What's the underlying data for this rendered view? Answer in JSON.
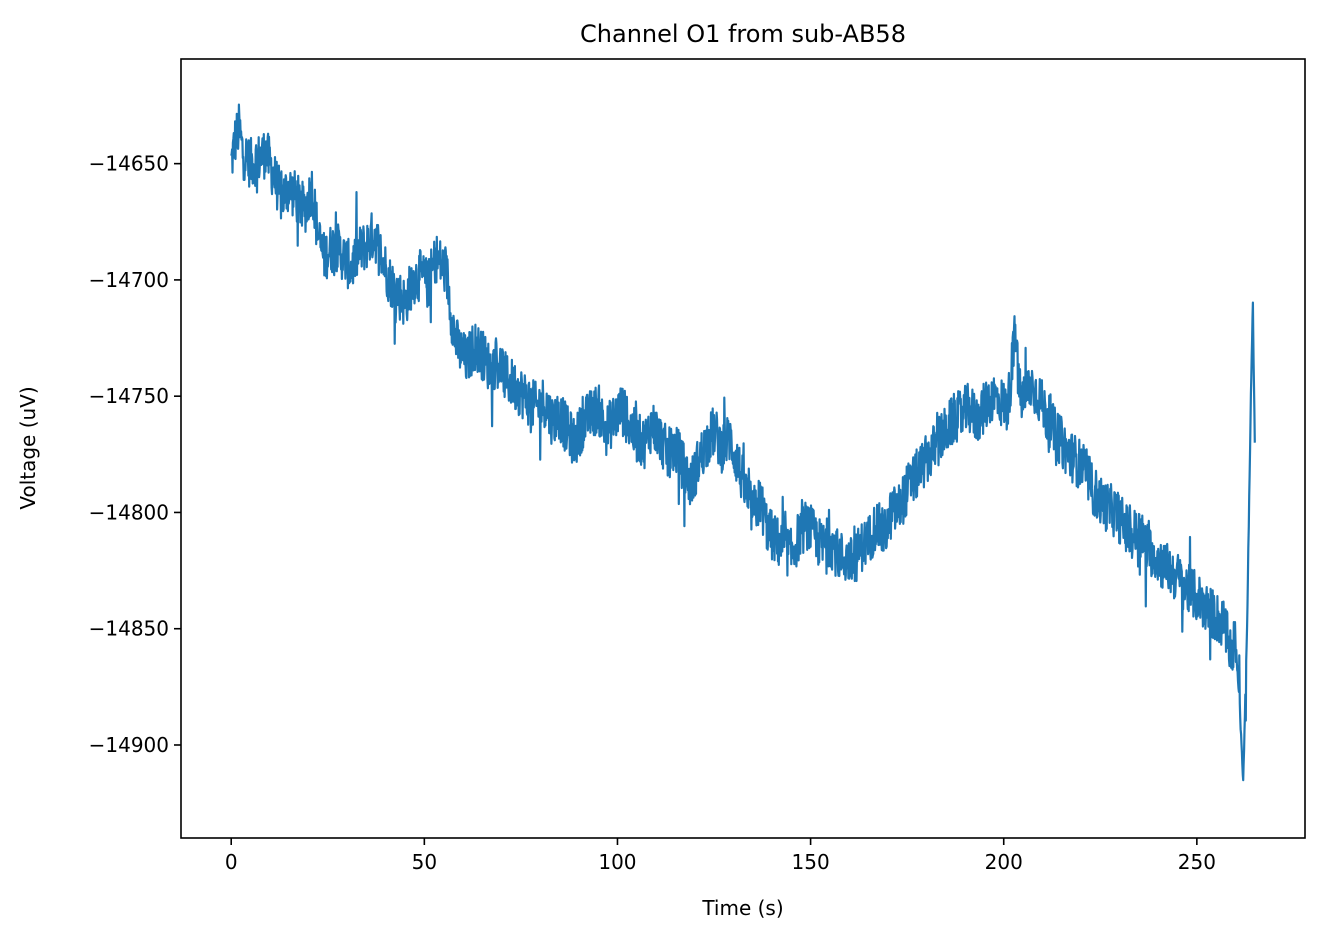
{
  "chart_data": {
    "type": "line",
    "title": "Channel O1 from sub-AB58",
    "xlabel": "Time (s)",
    "ylabel": "Voltage (uV)",
    "xlim": [
      -13,
      278
    ],
    "ylim": [
      -14940,
      -14605
    ],
    "xticks": [
      0,
      50,
      100,
      150,
      200,
      250
    ],
    "xtick_labels": [
      "0",
      "50",
      "100",
      "150",
      "200",
      "250"
    ],
    "yticks": [
      -14650,
      -14700,
      -14750,
      -14800,
      -14850,
      -14900
    ],
    "ytick_labels": [
      "−14650",
      "−14700",
      "−14750",
      "−14800",
      "−14850",
      "−14900"
    ],
    "grid": false,
    "series": [
      {
        "color": "#1f77b4",
        "x": [
          0,
          1,
          2,
          3,
          5,
          7,
          9,
          11,
          13,
          15,
          17,
          19,
          21,
          22,
          23,
          24,
          25,
          27,
          29,
          31,
          33,
          35,
          37,
          39,
          40,
          41,
          43,
          45,
          47,
          49,
          51,
          53,
          55,
          56,
          57,
          58,
          59,
          61,
          63,
          65,
          67,
          69,
          71,
          73,
          75,
          77,
          79,
          81,
          83,
          85,
          87,
          89,
          91,
          93,
          95,
          97,
          99,
          101,
          103,
          105,
          107,
          109,
          111,
          113,
          115,
          117,
          119,
          121,
          123,
          125,
          127,
          129,
          131,
          133,
          135,
          137,
          139,
          141,
          143,
          145,
          147,
          149,
          151,
          153,
          155,
          157,
          159,
          161,
          163,
          165,
          167,
          169,
          171,
          173,
          175,
          177,
          179,
          181,
          183,
          185,
          187,
          189,
          191,
          193,
          195,
          197,
          199,
          201,
          202,
          203,
          204,
          205,
          207,
          209,
          211,
          213,
          215,
          217,
          219,
          221,
          223,
          225,
          227,
          229,
          231,
          233,
          235,
          237,
          239,
          241,
          243,
          245,
          247,
          249,
          251,
          253,
          255,
          257,
          258,
          259,
          260,
          261,
          262,
          263,
          264,
          264.5,
          265
        ],
        "y": [
          -14650,
          -14640,
          -14635,
          -14645,
          -14650,
          -14648,
          -14645,
          -14655,
          -14665,
          -14660,
          -14665,
          -14670,
          -14660,
          -14675,
          -14685,
          -14690,
          -14688,
          -14685,
          -14690,
          -14695,
          -14688,
          -14685,
          -14680,
          -14690,
          -14695,
          -14700,
          -14705,
          -14710,
          -14700,
          -14698,
          -14702,
          -14690,
          -14695,
          -14700,
          -14715,
          -14725,
          -14730,
          -14735,
          -14728,
          -14732,
          -14738,
          -14735,
          -14742,
          -14745,
          -14748,
          -14752,
          -14755,
          -14752,
          -14760,
          -14758,
          -14765,
          -14770,
          -14762,
          -14758,
          -14755,
          -14765,
          -14760,
          -14755,
          -14762,
          -14768,
          -14770,
          -14762,
          -14768,
          -14775,
          -14772,
          -14780,
          -14788,
          -14778,
          -14770,
          -14765,
          -14772,
          -14768,
          -14778,
          -14790,
          -14800,
          -14795,
          -14808,
          -14812,
          -14815,
          -14818,
          -14810,
          -14805,
          -14810,
          -14815,
          -14812,
          -14818,
          -14820,
          -14822,
          -14815,
          -14812,
          -14805,
          -14810,
          -14800,
          -14798,
          -14790,
          -14785,
          -14780,
          -14775,
          -14770,
          -14765,
          -14760,
          -14758,
          -14755,
          -14760,
          -14755,
          -14750,
          -14752,
          -14755,
          -14740,
          -14722,
          -14748,
          -14752,
          -14745,
          -14750,
          -14758,
          -14765,
          -14770,
          -14775,
          -14778,
          -14782,
          -14790,
          -14795,
          -14798,
          -14800,
          -14805,
          -14810,
          -14808,
          -14815,
          -14818,
          -14822,
          -14825,
          -14828,
          -14832,
          -14835,
          -14838,
          -14842,
          -14845,
          -14848,
          -14855,
          -14860,
          -14855,
          -14880,
          -14915,
          -14850,
          -14750,
          -14710,
          -14770
        ]
      }
    ]
  }
}
